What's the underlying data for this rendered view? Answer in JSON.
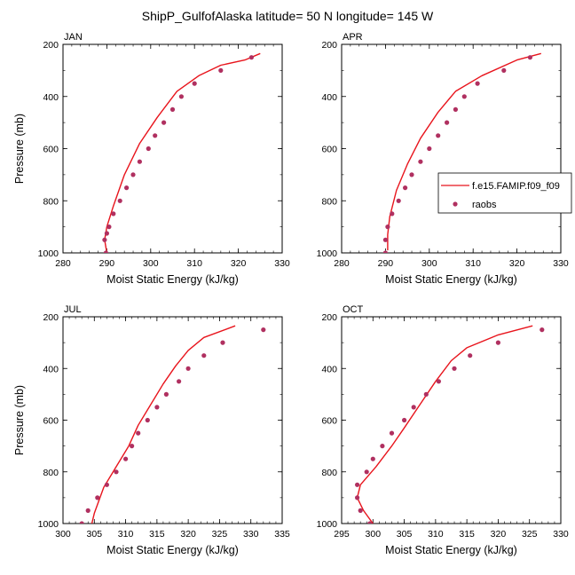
{
  "title": "ShipP_GulfofAlaska  latitude= 50 N longitude= 145 W",
  "legend": {
    "model_label": "f.e15.FAMIP.f09_f09",
    "obs_label": "raobs"
  },
  "colors": {
    "model_line": "#e8141c",
    "obs_marker": "#b03060",
    "axis": "#000000"
  },
  "chart_data": [
    {
      "type": "line",
      "panel_label": "JAN",
      "xlabel": "Moist Static Energy (kJ/kg)",
      "ylabel": "Pressure (mb)",
      "xlim": [
        280,
        330
      ],
      "ylim": [
        1000,
        200
      ],
      "y_inverted": true,
      "xticks": [
        280,
        290,
        300,
        310,
        320,
        330
      ],
      "yticks": [
        200,
        400,
        600,
        800,
        1000
      ],
      "grid": false,
      "series": [
        {
          "name": "f.e15.FAMIP.f09_f09",
          "kind": "line",
          "x": [
            325.0,
            321.5,
            316.0,
            311.0,
            306.0,
            301.5,
            297.5,
            294.0,
            291.5,
            290.0,
            289.5,
            290.0
          ],
          "y": [
            235,
            260,
            280,
            320,
            380,
            480,
            580,
            700,
            820,
            900,
            950,
            1000
          ]
        },
        {
          "name": "raobs",
          "kind": "markers",
          "x": [
            323.0,
            316.0,
            310.0,
            307.0,
            305.0,
            303.0,
            301.0,
            299.5,
            297.5,
            296.0,
            294.5,
            293.0,
            291.5,
            290.5,
            290.0,
            289.5,
            289.8
          ],
          "y": [
            250,
            300,
            350,
            400,
            450,
            500,
            550,
            600,
            650,
            700,
            750,
            800,
            850,
            900,
            925,
            950,
            1000
          ]
        }
      ]
    },
    {
      "type": "line",
      "panel_label": "APR",
      "xlabel": "Moist Static Energy (kJ/kg)",
      "ylabel": "",
      "xlim": [
        280,
        330
      ],
      "ylim": [
        1000,
        200
      ],
      "y_inverted": true,
      "xticks": [
        280,
        290,
        300,
        310,
        320,
        330
      ],
      "yticks": [
        200,
        400,
        600,
        800,
        1000
      ],
      "grid": false,
      "series": [
        {
          "name": "f.e15.FAMIP.f09_f09",
          "kind": "line",
          "x": [
            325.5,
            320.0,
            312.0,
            306.0,
            302.0,
            298.0,
            295.0,
            292.5,
            291.0,
            290.5,
            290.5
          ],
          "y": [
            235,
            260,
            320,
            380,
            460,
            560,
            660,
            760,
            860,
            930,
            990
          ]
        },
        {
          "name": "raobs",
          "kind": "markers",
          "x": [
            323.0,
            317.0,
            311.0,
            308.0,
            306.0,
            304.0,
            302.0,
            300.0,
            298.0,
            296.0,
            294.5,
            293.0,
            291.5,
            290.5,
            290.0,
            290.0
          ],
          "y": [
            250,
            300,
            350,
            400,
            450,
            500,
            550,
            600,
            650,
            700,
            750,
            800,
            850,
            900,
            950,
            1000
          ]
        }
      ]
    },
    {
      "type": "line",
      "panel_label": "JUL",
      "xlabel": "Moist Static Energy (kJ/kg)",
      "ylabel": "Pressure (mb)",
      "xlim": [
        300,
        335
      ],
      "ylim": [
        1000,
        200
      ],
      "y_inverted": true,
      "xticks": [
        300,
        305,
        310,
        315,
        320,
        325,
        330,
        335
      ],
      "yticks": [
        200,
        400,
        600,
        800,
        1000
      ],
      "grid": false,
      "series": [
        {
          "name": "f.e15.FAMIP.f09_f09",
          "kind": "line",
          "x": [
            327.5,
            322.5,
            320.0,
            318.0,
            316.0,
            314.0,
            312.0,
            310.5,
            308.5,
            306.5,
            305.0,
            304.5
          ],
          "y": [
            235,
            280,
            330,
            390,
            460,
            540,
            620,
            700,
            780,
            860,
            960,
            1010
          ]
        },
        {
          "name": "raobs",
          "kind": "markers",
          "x": [
            332.0,
            325.5,
            322.5,
            320.0,
            318.5,
            316.5,
            315.0,
            313.5,
            312.0,
            311.0,
            310.0,
            308.5,
            307.0,
            305.5,
            304.0,
            303.0
          ],
          "y": [
            250,
            300,
            350,
            400,
            450,
            500,
            550,
            600,
            650,
            700,
            750,
            800,
            850,
            900,
            950,
            1000
          ]
        }
      ]
    },
    {
      "type": "line",
      "panel_label": "OCT",
      "xlabel": "Moist Static Energy (kJ/kg)",
      "ylabel": "",
      "xlim": [
        295,
        330
      ],
      "ylim": [
        1000,
        200
      ],
      "y_inverted": true,
      "xticks": [
        295,
        300,
        305,
        310,
        315,
        320,
        325,
        330
      ],
      "yticks": [
        200,
        400,
        600,
        800,
        1000
      ],
      "grid": false,
      "series": [
        {
          "name": "f.e15.FAMIP.f09_f09",
          "kind": "line",
          "x": [
            325.5,
            320.0,
            315.0,
            312.5,
            310.0,
            307.5,
            305.0,
            303.0,
            300.5,
            298.0,
            297.5,
            298.5,
            300.0
          ],
          "y": [
            235,
            270,
            320,
            370,
            450,
            540,
            630,
            700,
            780,
            850,
            900,
            950,
            1000
          ]
        },
        {
          "name": "raobs",
          "kind": "markers",
          "x": [
            327.0,
            320.0,
            315.5,
            313.0,
            310.5,
            308.5,
            306.5,
            305.0,
            303.0,
            301.5,
            300.0,
            299.0,
            297.5,
            297.5,
            298.0,
            299.5
          ],
          "y": [
            250,
            300,
            350,
            400,
            450,
            500,
            550,
            600,
            650,
            700,
            750,
            800,
            850,
            900,
            950,
            1000
          ]
        }
      ]
    }
  ]
}
